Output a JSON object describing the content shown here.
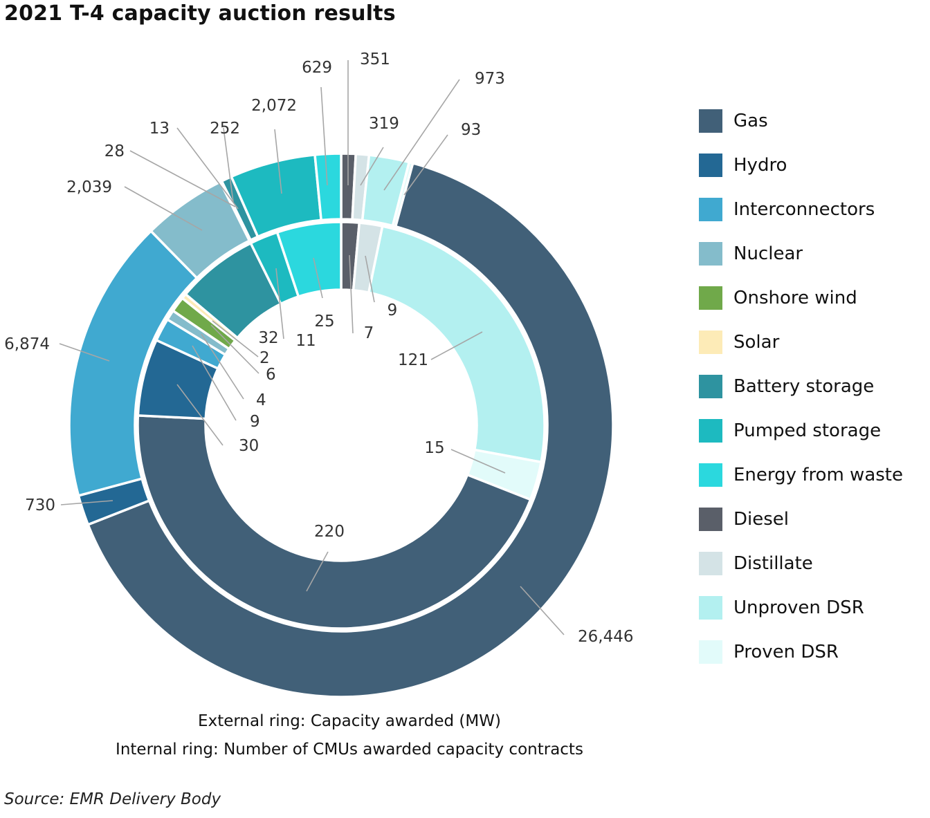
{
  "title": "2021 T-4 capacity auction results",
  "captions": {
    "external": "External ring: Capacity awarded (MW)",
    "internal": "Internal ring: Number of CMUs awarded capacity contracts"
  },
  "source": "Source: EMR Delivery Body",
  "chart_data": {
    "type": "pie",
    "subtype": "double-donut",
    "title": "2021 T-4 capacity auction results",
    "categories": [
      "Gas",
      "Hydro",
      "Interconnectors",
      "Nuclear",
      "Onshore wind",
      "Solar",
      "Battery storage",
      "Pumped storage",
      "Energy from waste",
      "Diesel",
      "Distillate",
      "Unproven DSR",
      "Proven DSR"
    ],
    "colors": [
      "#416078",
      "#236894",
      "#40a9d0",
      "#84bccb",
      "#70a94a",
      "#fdebb7",
      "#2e93a0",
      "#1dbac0",
      "#2bd8de",
      "#5a5f69",
      "#d4e3e6",
      "#b3f0f0",
      "#e2fbfa"
    ],
    "legend_position": "right",
    "series": [
      {
        "ring": "external",
        "values": [
          26446,
          730,
          6874,
          2039,
          28,
          13,
          252,
          2072,
          629,
          351,
          319,
          973,
          93
        ],
        "labels": [
          "26,446",
          "730",
          "6,874",
          "2,039",
          "28",
          "13",
          "252",
          "2,072",
          "629",
          "351",
          "319",
          "973",
          "93"
        ]
      },
      {
        "ring": "internal",
        "values": [
          220,
          30,
          9,
          4,
          6,
          2,
          32,
          11,
          25,
          7,
          9,
          121,
          15
        ],
        "labels": [
          "220",
          "30",
          "9",
          "4",
          "6",
          "2",
          "32",
          "11",
          "25",
          "7",
          "9",
          "121",
          "15"
        ]
      }
    ]
  }
}
